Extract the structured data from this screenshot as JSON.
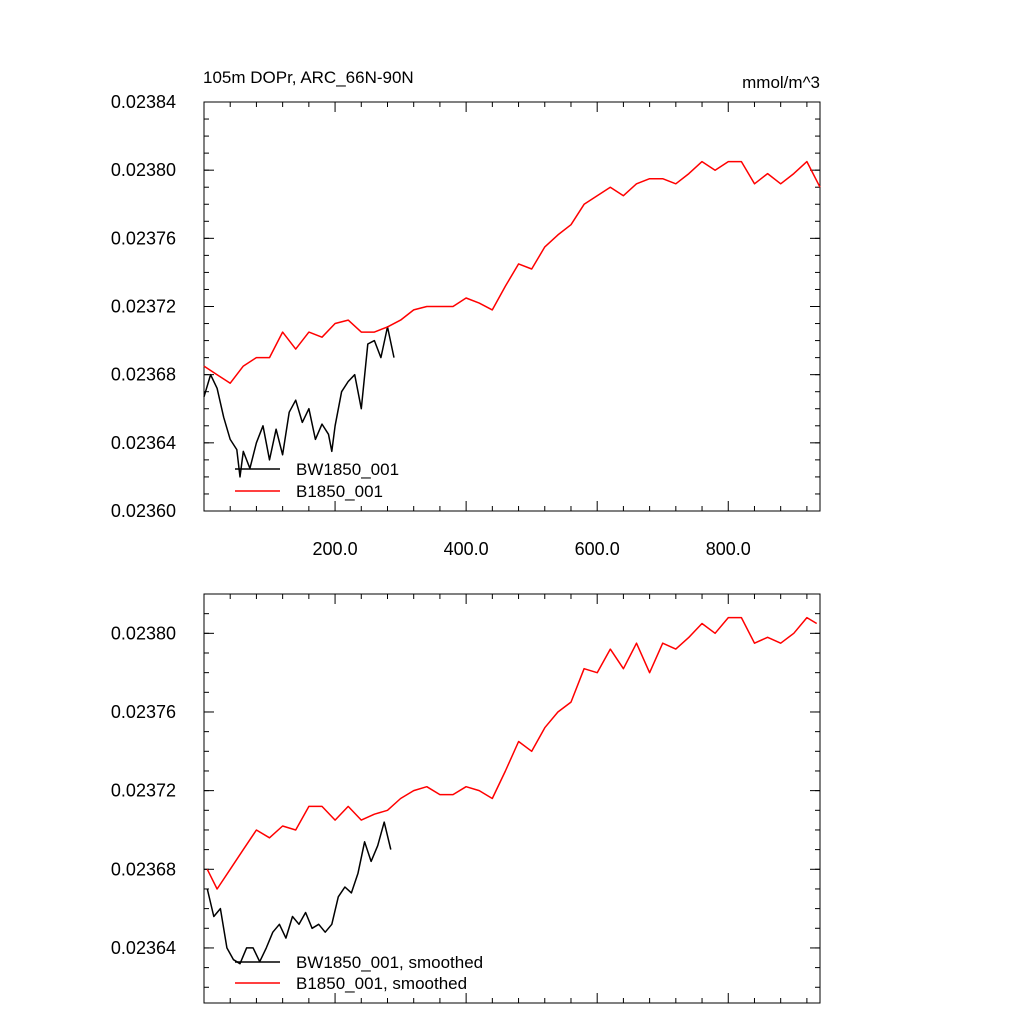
{
  "chart_data": [
    {
      "type": "line",
      "title": "105m DOPr, ARC_66N-90N",
      "units": "mmol/m^3",
      "xlim": [
        0,
        940
      ],
      "ylim": [
        0.0236,
        0.02384
      ],
      "x_ticks": [
        200,
        400,
        600,
        800
      ],
      "x_tick_labels": [
        "200.0",
        "400.0",
        "600.0",
        "800.0"
      ],
      "y_ticks": [
        0.0236,
        0.02364,
        0.02368,
        0.02372,
        0.02376,
        0.0238,
        0.02384
      ],
      "y_tick_labels": [
        "0.02360",
        "0.02364",
        "0.02368",
        "0.02372",
        "0.02376",
        "0.02380",
        "0.02384"
      ],
      "legend_position": "bottom-left",
      "series": [
        {
          "name": "BW1850_001",
          "color": "#000000",
          "x": [
            0,
            10,
            20,
            30,
            40,
            50,
            55,
            60,
            70,
            80,
            90,
            100,
            110,
            120,
            130,
            140,
            150,
            160,
            170,
            180,
            190,
            195,
            200,
            210,
            220,
            230,
            240,
            250,
            260,
            270,
            280,
            290
          ],
          "y": [
            0.023667,
            0.02368,
            0.023672,
            0.023655,
            0.023642,
            0.023636,
            0.02362,
            0.023635,
            0.023625,
            0.02364,
            0.02365,
            0.02363,
            0.023648,
            0.023633,
            0.023658,
            0.023665,
            0.023652,
            0.02366,
            0.023642,
            0.023651,
            0.023645,
            0.023635,
            0.02365,
            0.02367,
            0.023676,
            0.02368,
            0.02366,
            0.023698,
            0.0237,
            0.02369,
            0.023708,
            0.02369
          ]
        },
        {
          "name": "B1850_001",
          "color": "#ff0000",
          "x": [
            0,
            20,
            40,
            60,
            80,
            100,
            120,
            140,
            160,
            180,
            200,
            220,
            240,
            260,
            280,
            300,
            320,
            340,
            360,
            380,
            400,
            420,
            440,
            460,
            480,
            500,
            520,
            540,
            560,
            580,
            600,
            620,
            640,
            660,
            680,
            700,
            720,
            740,
            760,
            780,
            800,
            820,
            840,
            860,
            880,
            900,
            920,
            940
          ],
          "y": [
            0.023685,
            0.02368,
            0.023675,
            0.023685,
            0.02369,
            0.02369,
            0.023705,
            0.023695,
            0.023705,
            0.023702,
            0.02371,
            0.023712,
            0.023705,
            0.023705,
            0.023708,
            0.023712,
            0.023718,
            0.02372,
            0.02372,
            0.02372,
            0.023725,
            0.023722,
            0.023718,
            0.023732,
            0.023745,
            0.023742,
            0.023755,
            0.023762,
            0.023768,
            0.02378,
            0.023785,
            0.02379,
            0.023785,
            0.023792,
            0.023795,
            0.023795,
            0.023792,
            0.023798,
            0.023805,
            0.0238,
            0.023805,
            0.023805,
            0.023792,
            0.023798,
            0.023792,
            0.023798,
            0.023805,
            0.02379
          ]
        }
      ]
    },
    {
      "type": "line",
      "title": "",
      "xlim": [
        0,
        940
      ],
      "ylim": [
        0.023612,
        0.02382
      ],
      "x_ticks": [
        200,
        400,
        600,
        800
      ],
      "y_ticks": [
        0.02364,
        0.02368,
        0.02372,
        0.02376,
        0.0238
      ],
      "y_tick_labels": [
        "0.02364",
        "0.02368",
        "0.02372",
        "0.02376",
        "0.02380"
      ],
      "legend_position": "bottom-left",
      "series": [
        {
          "name": "BW1850_001, smoothed",
          "color": "#000000",
          "x": [
            5,
            15,
            25,
            35,
            45,
            55,
            65,
            75,
            85,
            95,
            105,
            115,
            125,
            135,
            145,
            155,
            165,
            175,
            185,
            195,
            205,
            215,
            225,
            235,
            245,
            255,
            265,
            275,
            285
          ],
          "y": [
            0.02367,
            0.023656,
            0.02366,
            0.02364,
            0.023634,
            0.023632,
            0.02364,
            0.02364,
            0.023633,
            0.02364,
            0.023648,
            0.023652,
            0.023645,
            0.023656,
            0.023652,
            0.023658,
            0.02365,
            0.023652,
            0.023648,
            0.023652,
            0.023666,
            0.023671,
            0.023668,
            0.023678,
            0.023694,
            0.023684,
            0.023692,
            0.023704,
            0.02369
          ]
        },
        {
          "name": "B1850_001, smoothed",
          "color": "#ff0000",
          "x": [
            5,
            20,
            40,
            60,
            80,
            100,
            120,
            140,
            160,
            180,
            200,
            220,
            240,
            260,
            280,
            300,
            320,
            340,
            360,
            380,
            400,
            420,
            440,
            460,
            480,
            500,
            520,
            540,
            560,
            580,
            600,
            620,
            640,
            660,
            680,
            700,
            720,
            740,
            760,
            780,
            800,
            820,
            840,
            860,
            880,
            900,
            920,
            935
          ],
          "y": [
            0.02368,
            0.02367,
            0.02368,
            0.02369,
            0.0237,
            0.023696,
            0.023702,
            0.0237,
            0.023712,
            0.023712,
            0.023705,
            0.023712,
            0.023705,
            0.023708,
            0.02371,
            0.023716,
            0.02372,
            0.023722,
            0.023718,
            0.023718,
            0.023722,
            0.02372,
            0.023716,
            0.02373,
            0.023745,
            0.02374,
            0.023752,
            0.02376,
            0.023765,
            0.023782,
            0.02378,
            0.023792,
            0.023782,
            0.023795,
            0.02378,
            0.023795,
            0.023792,
            0.023798,
            0.023805,
            0.0238,
            0.023808,
            0.023808,
            0.023795,
            0.023798,
            0.023795,
            0.0238,
            0.023808,
            0.023805
          ]
        }
      ]
    }
  ]
}
